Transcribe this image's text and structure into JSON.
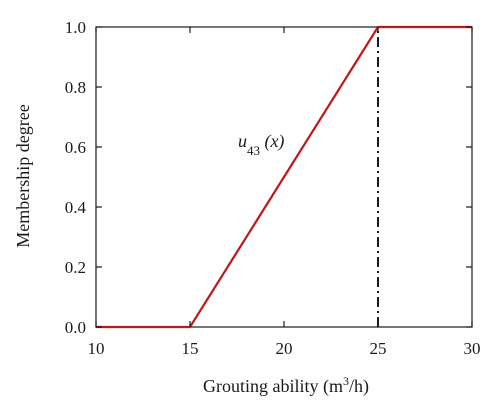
{
  "chart_data": {
    "type": "line",
    "title": "",
    "xlabel": "Grouting ability (m",
    "xlabel_sup": "3",
    "xlabel_tail": "/h)",
    "ylabel": "Membership degree",
    "xlim": [
      10,
      30
    ],
    "ylim": [
      0.0,
      1.0
    ],
    "x_ticks": [
      "10",
      "15",
      "20",
      "25",
      "30"
    ],
    "y_ticks": [
      "0.0",
      "0.2",
      "0.4",
      "0.6",
      "0.8",
      "1.0"
    ],
    "grid": false,
    "series": [
      {
        "name": "",
        "color": "#c0171b",
        "x": [
          10,
          15,
          25,
          30
        ],
        "y": [
          0.0,
          0.0,
          1.0,
          1.0
        ]
      }
    ],
    "reference_lines": [
      {
        "axis": "x",
        "value": 25,
        "style": "dash-dot",
        "color": "#1a1a1a"
      }
    ],
    "annotations": [
      {
        "text": "u",
        "subscript": "43",
        "tail": " (x)",
        "x": 19.0,
        "y": 0.62
      }
    ]
  }
}
